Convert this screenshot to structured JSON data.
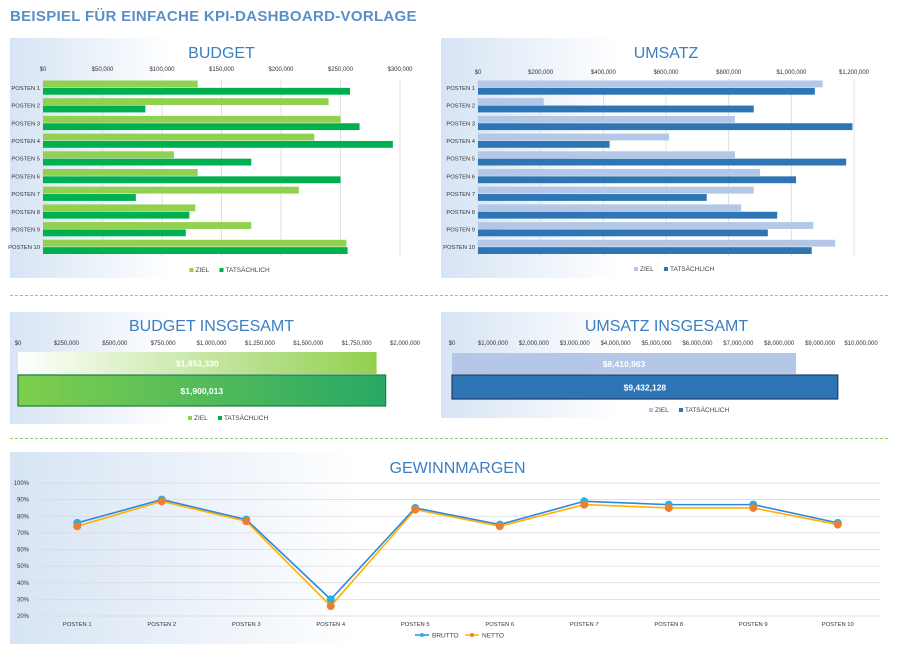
{
  "page": {
    "title": "BEISPIEL FÜR EINFACHE KPI-DASHBOARD-VORLAGE"
  },
  "colors": {
    "ziel_budget": "#92d050",
    "ist_budget": "#00b050",
    "ziel_umsatz": "#b4c7e7",
    "ist_umsatz": "#2e75b6",
    "brutto": "#2e86de",
    "netto": "#ffb000",
    "brutto_marker": "#1fb3e8",
    "netto_marker": "#ed7d31"
  },
  "chart_data": [
    {
      "id": "budget",
      "type": "bar",
      "orientation": "horizontal",
      "title": "BUDGET",
      "categories": [
        "POSTEN 1",
        "POSTEN 2",
        "POSTEN 3",
        "POSTEN 4",
        "POSTEN 5",
        "POSTEN 6",
        "POSTEN 7",
        "POSTEN 8",
        "POSTEN 9",
        "POSTEN 10"
      ],
      "series": [
        {
          "name": "ZIEL",
          "values": [
            130000,
            240000,
            250000,
            228000,
            110000,
            130000,
            215000,
            128000,
            175000,
            255000
          ]
        },
        {
          "name": "TATSÄCHLICH",
          "values": [
            258000,
            86000,
            266000,
            294000,
            175000,
            250000,
            78000,
            123000,
            120000,
            256000
          ]
        }
      ],
      "xlim": [
        0,
        300000
      ],
      "ticks": [
        "$0",
        "$50,000",
        "$100,000",
        "$150,000",
        "$200,000",
        "$250,000",
        "$300,000"
      ],
      "grid": true,
      "legend": "bottom"
    },
    {
      "id": "umsatz",
      "type": "bar",
      "orientation": "horizontal",
      "title": "UMSATZ",
      "categories": [
        "POSTEN 1",
        "POSTEN 2",
        "POSTEN 3",
        "POSTEN 4",
        "POSTEN 5",
        "POSTEN 6",
        "POSTEN 7",
        "POSTEN 8",
        "POSTEN 9",
        "POSTEN 10"
      ],
      "series": [
        {
          "name": "ZIEL",
          "values": [
            1100000,
            210000,
            820000,
            610000,
            820000,
            900000,
            880000,
            840000,
            1070000,
            1140000
          ]
        },
        {
          "name": "TATSÄCHLICH",
          "values": [
            1075000,
            880000,
            1195000,
            420000,
            1175000,
            1015000,
            730000,
            955000,
            925000,
            1065000
          ]
        }
      ],
      "xlim": [
        0,
        1200000
      ],
      "ticks": [
        "$0",
        "$200,000",
        "$400,000",
        "$600,000",
        "$800,000",
        "$1,000,000",
        "$1,200,000"
      ],
      "grid": true,
      "legend": "bottom"
    },
    {
      "id": "budget_total",
      "type": "bar",
      "orientation": "horizontal",
      "title": "BUDGET INSGESAMT",
      "series": [
        {
          "name": "ZIEL",
          "values": [
            1853330
          ],
          "label": "$1,853,330"
        },
        {
          "name": "TATSÄCHLICH",
          "values": [
            1900013
          ],
          "label": "$1,900,013"
        }
      ],
      "xlim": [
        0,
        2000000
      ],
      "ticks": [
        "$0",
        "$250,000",
        "$500,000",
        "$750,000",
        "$1,000,000",
        "$1,250,000",
        "$1,500,000",
        "$1,750,000",
        "$2,000,000"
      ],
      "legend": "bottom"
    },
    {
      "id": "umsatz_total",
      "type": "bar",
      "orientation": "horizontal",
      "title": "UMSATZ INSGESAMT",
      "series": [
        {
          "name": "ZIEL",
          "values": [
            8410963
          ],
          "label": "$8,410,963"
        },
        {
          "name": "TATSÄCHLICH",
          "values": [
            9432128
          ],
          "label": "$9,432,128"
        }
      ],
      "xlim": [
        0,
        10000000
      ],
      "ticks": [
        "$0",
        "$1,000,000",
        "$2,000,000",
        "$3,000,000",
        "$4,000,000",
        "$5,000,000",
        "$6,000,000",
        "$7,000,000",
        "$8,000,000",
        "$9,000,000",
        "$10,000,000"
      ],
      "legend": "bottom"
    },
    {
      "id": "gewinnmargen",
      "type": "line",
      "title": "GEWINNMARGEN",
      "categories": [
        "POSTEN 1",
        "POSTEN 2",
        "POSTEN 3",
        "POSTEN 4",
        "POSTEN 5",
        "POSTEN 6",
        "POSTEN 7",
        "POSTEN 8",
        "POSTEN 9",
        "POSTEN 10"
      ],
      "series": [
        {
          "name": "BRUTTO",
          "values": [
            76,
            90,
            78,
            30,
            85,
            75,
            89,
            87,
            87,
            76
          ]
        },
        {
          "name": "NETTO",
          "values": [
            74,
            89,
            77,
            26,
            84,
            74,
            87,
            85,
            85,
            75
          ]
        }
      ],
      "ylim": [
        20,
        100
      ],
      "ticks": [
        "20%",
        "30%",
        "40%",
        "50%",
        "60%",
        "70%",
        "80%",
        "90%",
        "100%"
      ],
      "grid": true,
      "legend": "bottom"
    }
  ]
}
